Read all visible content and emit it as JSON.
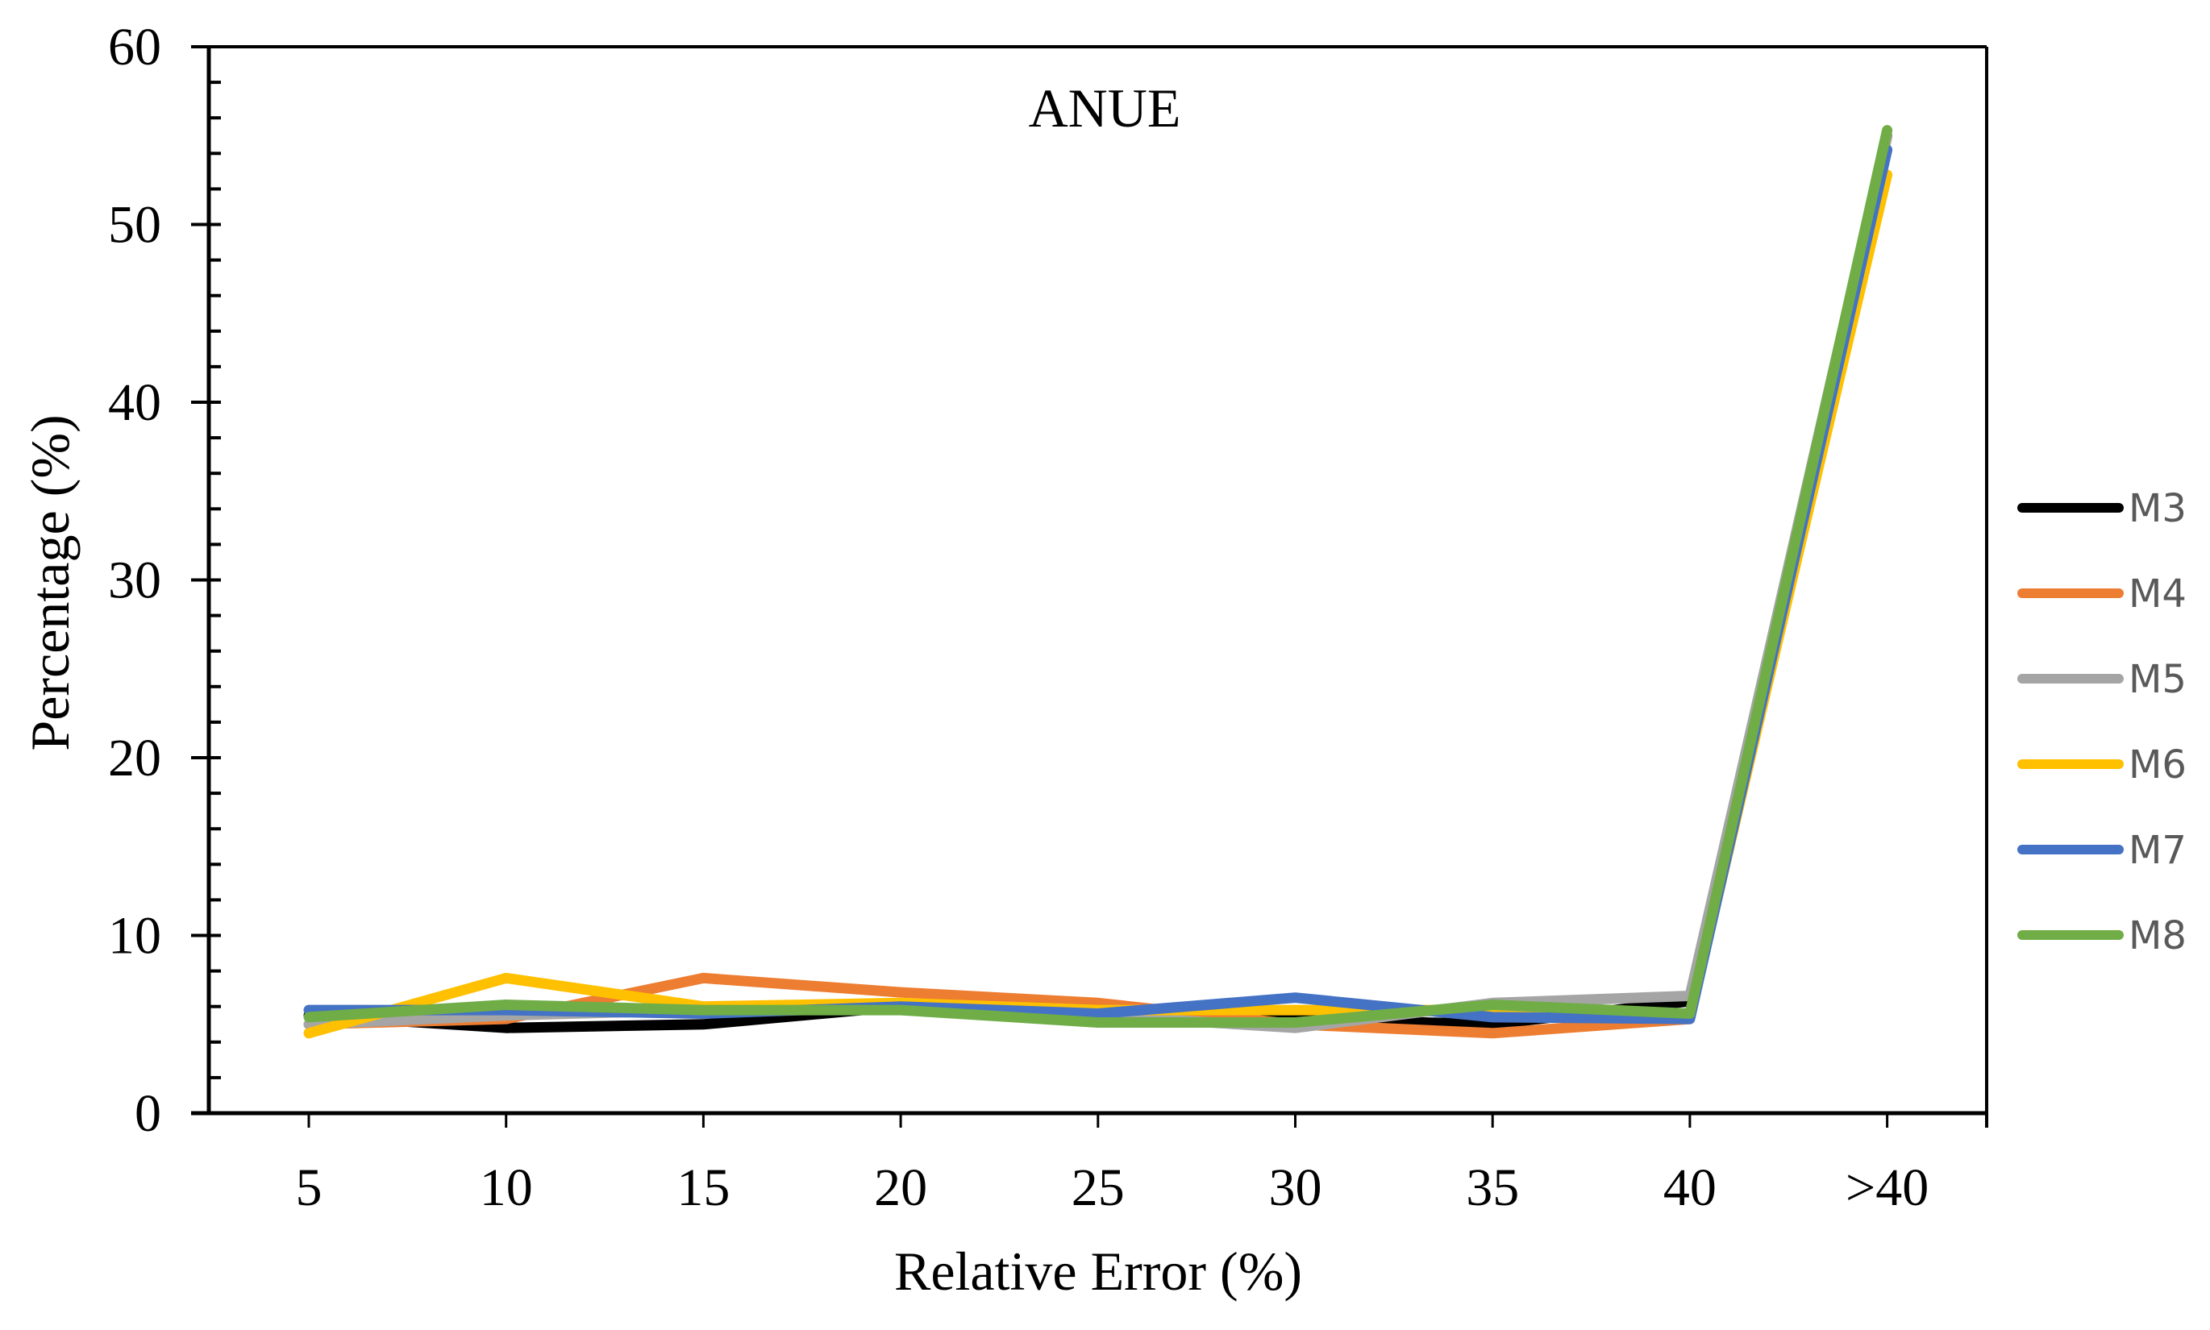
{
  "chart_data": {
    "type": "line",
    "title": "ANUE",
    "xlabel": "Relative Error (%)",
    "ylabel": "Percentage (%)",
    "categories": [
      "5",
      "10",
      "15",
      "20",
      "25",
      "30",
      "35",
      "40",
      ">40"
    ],
    "ylim": [
      0,
      60
    ],
    "yticks": [
      "0",
      "10",
      "20",
      "30",
      "40",
      "50",
      "60"
    ],
    "grid": false,
    "legend_position": "right",
    "series": [
      {
        "name": "M3",
        "color": "#000000",
        "values": [
          5.5,
          4.8,
          5.0,
          6.0,
          5.5,
          5.3,
          5.0,
          6.3,
          55.0
        ]
      },
      {
        "name": "M4",
        "color": "#ED7D31",
        "values": [
          5.0,
          5.3,
          7.6,
          6.8,
          6.2,
          5.0,
          4.5,
          5.3,
          55.0
        ]
      },
      {
        "name": "M5",
        "color": "#A5A5A5",
        "values": [
          5.0,
          5.5,
          5.8,
          6.0,
          5.5,
          4.8,
          6.2,
          6.6,
          55.0
        ]
      },
      {
        "name": "M6",
        "color": "#FFC000",
        "values": [
          4.5,
          7.6,
          6.0,
          6.2,
          5.8,
          5.8,
          5.8,
          5.5,
          52.8
        ]
      },
      {
        "name": "M7",
        "color": "#4472C4",
        "values": [
          5.8,
          5.8,
          5.6,
          6.0,
          5.6,
          6.5,
          5.4,
          5.3,
          54.2
        ]
      },
      {
        "name": "M8",
        "color": "#70AD47",
        "values": [
          5.4,
          6.1,
          5.8,
          5.8,
          5.1,
          5.1,
          6.1,
          5.6,
          55.3
        ]
      }
    ]
  }
}
